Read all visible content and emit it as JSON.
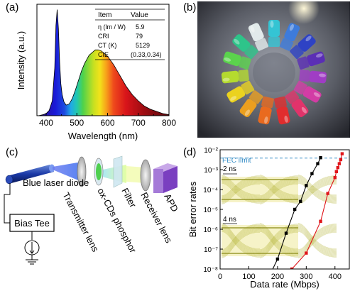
{
  "panel_labels": {
    "a": "(a)",
    "b": "(b)",
    "c": "(c)",
    "d": "(d)"
  },
  "panel_a": {
    "xlabel": "Wavelength (nm)",
    "ylabel": "Intensity (a.u.)",
    "table": {
      "headers": [
        "Item",
        "Value"
      ],
      "rows": [
        {
          "item": "η (lm / W)",
          "value": "5.9"
        },
        {
          "item": "CRI",
          "value": "79"
        },
        {
          "item": "CT (K)",
          "value": "5129"
        },
        {
          "item": "CIE",
          "value": "(0.33,0.34)"
        }
      ]
    }
  },
  "panel_c": {
    "labels": {
      "blue_laser_diode": "Blue laser diode",
      "bias_tee": "Bias Tee",
      "transmitter_lens": "Transmitter lens",
      "phosphor": "ox-CDs phosphor",
      "filter": "Filter",
      "receiver_lens": "Receiver lens",
      "apd": "APD"
    }
  },
  "panel_d": {
    "fec_label": "FEC limit",
    "eye1_label": "2 ns",
    "eye2_label": "4 ns"
  },
  "chart_data": [
    {
      "type": "line",
      "title": "",
      "xlabel": "Wavelength (nm)",
      "ylabel": "Intensity (a.u.)",
      "xlim": [
        370,
        800
      ],
      "ylim": [
        0,
        1.05
      ],
      "x_ticks": [
        "400",
        "500",
        "600",
        "700",
        "800"
      ],
      "series": [
        {
          "x": [
            375,
            390,
            400,
            410,
            420,
            428,
            432,
            436,
            440,
            444,
            448,
            452,
            458,
            465,
            475,
            485,
            495,
            505,
            515,
            525,
            540,
            560,
            570,
            580,
            600,
            620,
            640,
            660,
            680,
            700,
            720,
            740,
            760,
            780,
            800
          ],
          "values": [
            0.0,
            0.01,
            0.02,
            0.05,
            0.14,
            0.45,
            0.85,
            1.0,
            0.82,
            0.5,
            0.3,
            0.2,
            0.13,
            0.1,
            0.11,
            0.16,
            0.24,
            0.33,
            0.42,
            0.49,
            0.57,
            0.62,
            0.62,
            0.61,
            0.56,
            0.48,
            0.38,
            0.28,
            0.2,
            0.14,
            0.09,
            0.06,
            0.04,
            0.02,
            0.01
          ]
        }
      ]
    },
    {
      "type": "line",
      "title": "",
      "xlabel": "Data rate (Mbps)",
      "ylabel": "Bit error rates",
      "xlim": [
        0,
        450
      ],
      "ylim_log10": [
        -8,
        -2
      ],
      "y_scale": "log",
      "x_ticks": [
        "0",
        "100",
        "200",
        "300",
        "400"
      ],
      "y_ticks": [
        "10⁻⁸",
        "10⁻⁷",
        "10⁻⁶",
        "10⁻⁵",
        "10⁻⁴",
        "10⁻³",
        "10⁻²"
      ],
      "fec_limit": 0.0038,
      "series": [
        {
          "color": "#000000",
          "x": [
            180,
            200,
            230,
            260,
            280,
            300,
            320,
            340,
            350
          ],
          "y_log10": [
            -8.1,
            -7.5,
            -6.2,
            -5.0,
            -4.6,
            -3.8,
            -3.2,
            -2.7,
            -2.4
          ]
        },
        {
          "color": "#e0151a",
          "x": [
            250,
            300,
            350,
            375,
            400,
            405,
            410,
            415,
            420,
            425
          ],
          "y_log10": [
            -8.0,
            -7.2,
            -5.6,
            -4.2,
            -3.4,
            -3.1,
            -2.9,
            -2.7,
            -2.5,
            -2.2
          ]
        }
      ]
    }
  ]
}
